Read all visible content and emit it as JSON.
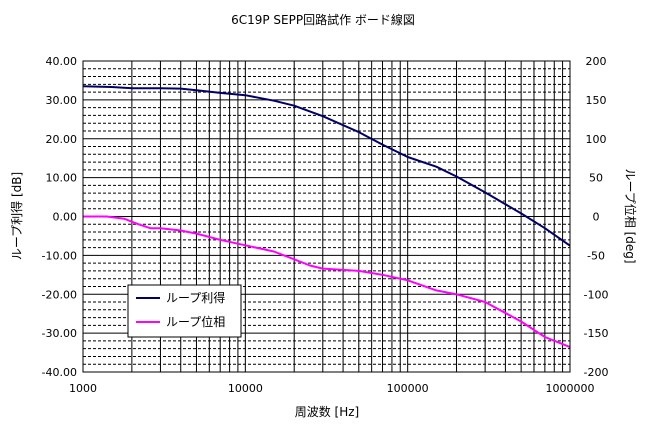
{
  "chart_data": {
    "type": "line",
    "title": "6C19P SEPP回路試作 ボード線図",
    "xlabel": "周波数 [Hz]",
    "ylabel": "ループ利得 [dB]",
    "y2label": "ループ位相 [deg]",
    "xscale": "log",
    "xlim": [
      1000,
      1000000
    ],
    "ylim": [
      -40,
      40
    ],
    "y2lim": [
      -200,
      200
    ],
    "x_tick_labels": [
      "1000",
      "10000",
      "100000",
      "1000000"
    ],
    "y_tick_labels": [
      "-40.00",
      "-30.00",
      "-20.00",
      "-10.00",
      "0.00",
      "10.00",
      "20.00",
      "30.00",
      "40.00"
    ],
    "y2_tick_labels": [
      "-200",
      "-150",
      "-100",
      "-50",
      "0",
      "50",
      "100",
      "150",
      "200"
    ],
    "grid": true,
    "legend_position": "bottom-left",
    "series": [
      {
        "name": "ループ利得",
        "axis": "left",
        "color": "#000066",
        "x": [
          1000,
          1500,
          2000,
          3000,
          4000,
          5000,
          7000,
          10000,
          15000,
          20000,
          30000,
          50000,
          70000,
          100000,
          150000,
          200000,
          300000,
          500000,
          700000,
          1000000
        ],
        "y": [
          33.5,
          33.3,
          33.0,
          33.0,
          32.9,
          32.5,
          31.8,
          31.2,
          29.8,
          28.5,
          25.8,
          21.7,
          18.5,
          15.3,
          12.8,
          10.3,
          6.2,
          0.8,
          -3.0,
          -7.5
        ]
      },
      {
        "name": "ループ位相",
        "axis": "right",
        "color": "#ff00ff",
        "x": [
          1000,
          1400,
          1800,
          2200,
          2600,
          3000,
          4000,
          5000,
          7000,
          10000,
          15000,
          20000,
          25000,
          30000,
          50000,
          70000,
          100000,
          150000,
          200000,
          300000,
          500000,
          700000,
          1000000
        ],
        "y": [
          0,
          0,
          -3,
          -10,
          -15,
          -15,
          -18,
          -22,
          -30,
          -37,
          -45,
          -55,
          -63,
          -67,
          -70,
          -75,
          -82,
          -95,
          -100,
          -110,
          -135,
          -155,
          -168
        ]
      }
    ]
  }
}
